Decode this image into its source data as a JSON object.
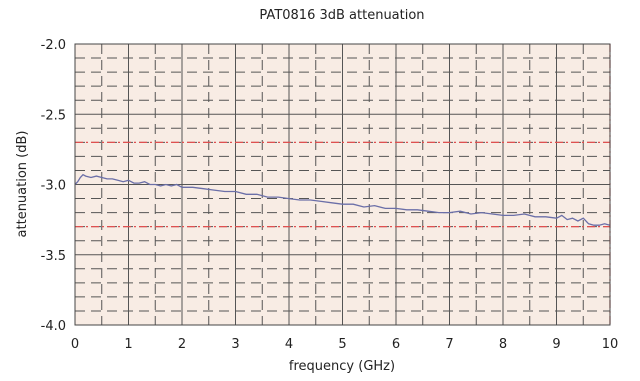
{
  "chart_data": {
    "type": "line",
    "title": "PAT0816 3dB attenuation",
    "xlabel": "frequency (GHz)",
    "ylabel": "attenuation (dB)",
    "xlim": [
      0,
      10
    ],
    "ylim": [
      -4.0,
      -2.0
    ],
    "x_ticks": [
      "0",
      "1",
      "2",
      "3",
      "4",
      "5",
      "6",
      "7",
      "8",
      "9",
      "10"
    ],
    "y_ticks": [
      "-2.0",
      "-2.5",
      "-3.0",
      "-3.5",
      "-4.0"
    ],
    "limit_lines": [
      -2.7,
      -3.3
    ],
    "grid": true,
    "series": [
      {
        "color": "#6b6fa8",
        "x": [
          0.0,
          0.05,
          0.1,
          0.15,
          0.2,
          0.3,
          0.4,
          0.5,
          0.6,
          0.7,
          0.8,
          0.9,
          1.0,
          1.1,
          1.2,
          1.3,
          1.4,
          1.5,
          1.6,
          1.7,
          1.8,
          1.9,
          2.0,
          2.2,
          2.4,
          2.6,
          2.8,
          3.0,
          3.2,
          3.4,
          3.6,
          3.8,
          4.0,
          4.2,
          4.4,
          4.6,
          4.8,
          5.0,
          5.2,
          5.4,
          5.6,
          5.8,
          6.0,
          6.2,
          6.4,
          6.6,
          6.8,
          7.0,
          7.2,
          7.4,
          7.6,
          7.8,
          8.0,
          8.2,
          8.4,
          8.6,
          8.8,
          9.0,
          9.1,
          9.2,
          9.3,
          9.4,
          9.5,
          9.6,
          9.7,
          9.8,
          9.9,
          10.0
        ],
        "y": [
          -3.0,
          -2.98,
          -2.95,
          -2.93,
          -2.94,
          -2.95,
          -2.94,
          -2.95,
          -2.96,
          -2.96,
          -2.97,
          -2.98,
          -2.97,
          -2.99,
          -2.99,
          -2.98,
          -3.0,
          -3.0,
          -3.01,
          -3.0,
          -3.01,
          -3.0,
          -3.02,
          -3.02,
          -3.03,
          -3.04,
          -3.05,
          -3.05,
          -3.07,
          -3.07,
          -3.09,
          -3.09,
          -3.1,
          -3.11,
          -3.11,
          -3.12,
          -3.13,
          -3.14,
          -3.14,
          -3.16,
          -3.15,
          -3.17,
          -3.17,
          -3.18,
          -3.18,
          -3.19,
          -3.2,
          -3.2,
          -3.19,
          -3.21,
          -3.2,
          -3.21,
          -3.22,
          -3.22,
          -3.21,
          -3.23,
          -3.23,
          -3.24,
          -3.22,
          -3.25,
          -3.24,
          -3.26,
          -3.24,
          -3.28,
          -3.29,
          -3.29,
          -3.28,
          -3.29
        ]
      }
    ]
  }
}
